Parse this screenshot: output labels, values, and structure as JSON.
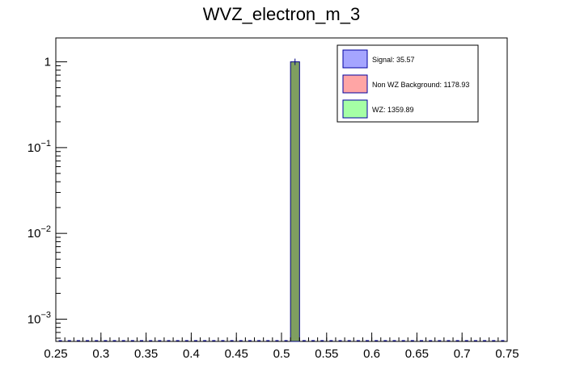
{
  "chart_data": {
    "type": "bar",
    "title": "WVZ_electron_m_3",
    "xlabel": "",
    "ylabel": "",
    "x_range": [
      0.25,
      0.75
    ],
    "y_scale": "log",
    "y_range": [
      0.00055,
      1.9
    ],
    "bin_width": 0.01,
    "x_ticks": [
      {
        "value": 0.25,
        "label": "0.25"
      },
      {
        "value": 0.3,
        "label": "0.3"
      },
      {
        "value": 0.35,
        "label": "0.35"
      },
      {
        "value": 0.4,
        "label": "0.4"
      },
      {
        "value": 0.45,
        "label": "0.45"
      },
      {
        "value": 0.5,
        "label": "0.5"
      },
      {
        "value": 0.55,
        "label": "0.55"
      },
      {
        "value": 0.6,
        "label": "0.6"
      },
      {
        "value": 0.65,
        "label": "0.65"
      },
      {
        "value": 0.7,
        "label": "0.7"
      },
      {
        "value": 0.75,
        "label": "0.75"
      }
    ],
    "y_ticks": [
      {
        "value": 1,
        "base": "1",
        "exp": ""
      },
      {
        "value": 0.1,
        "base": "10",
        "exp": "−1"
      },
      {
        "value": 0.01,
        "base": "10",
        "exp": "−2"
      },
      {
        "value": 0.001,
        "base": "10",
        "exp": "−3"
      }
    ],
    "series": [
      {
        "name": "Signal: 35.57",
        "color": "#a5a5ff",
        "edge": "#0000a0",
        "bins": [
          {
            "x_low": 0.51,
            "x_high": 0.52,
            "value": 1.0
          }
        ]
      },
      {
        "name": "Non WZ Background: 1178.93",
        "color": "#ffa5a5",
        "edge": "#0000a0",
        "bins": [
          {
            "x_low": 0.51,
            "x_high": 0.52,
            "value": 1.0
          }
        ]
      },
      {
        "name": "WZ: 1359.89",
        "color": "#a5ffa5",
        "edge": "#0000a0",
        "bins": [
          {
            "x_low": 0.51,
            "x_high": 0.52,
            "value": 1.0
          }
        ]
      }
    ],
    "overlap_color": "#7f9f60",
    "grid": false,
    "legend_position": "top-right"
  }
}
